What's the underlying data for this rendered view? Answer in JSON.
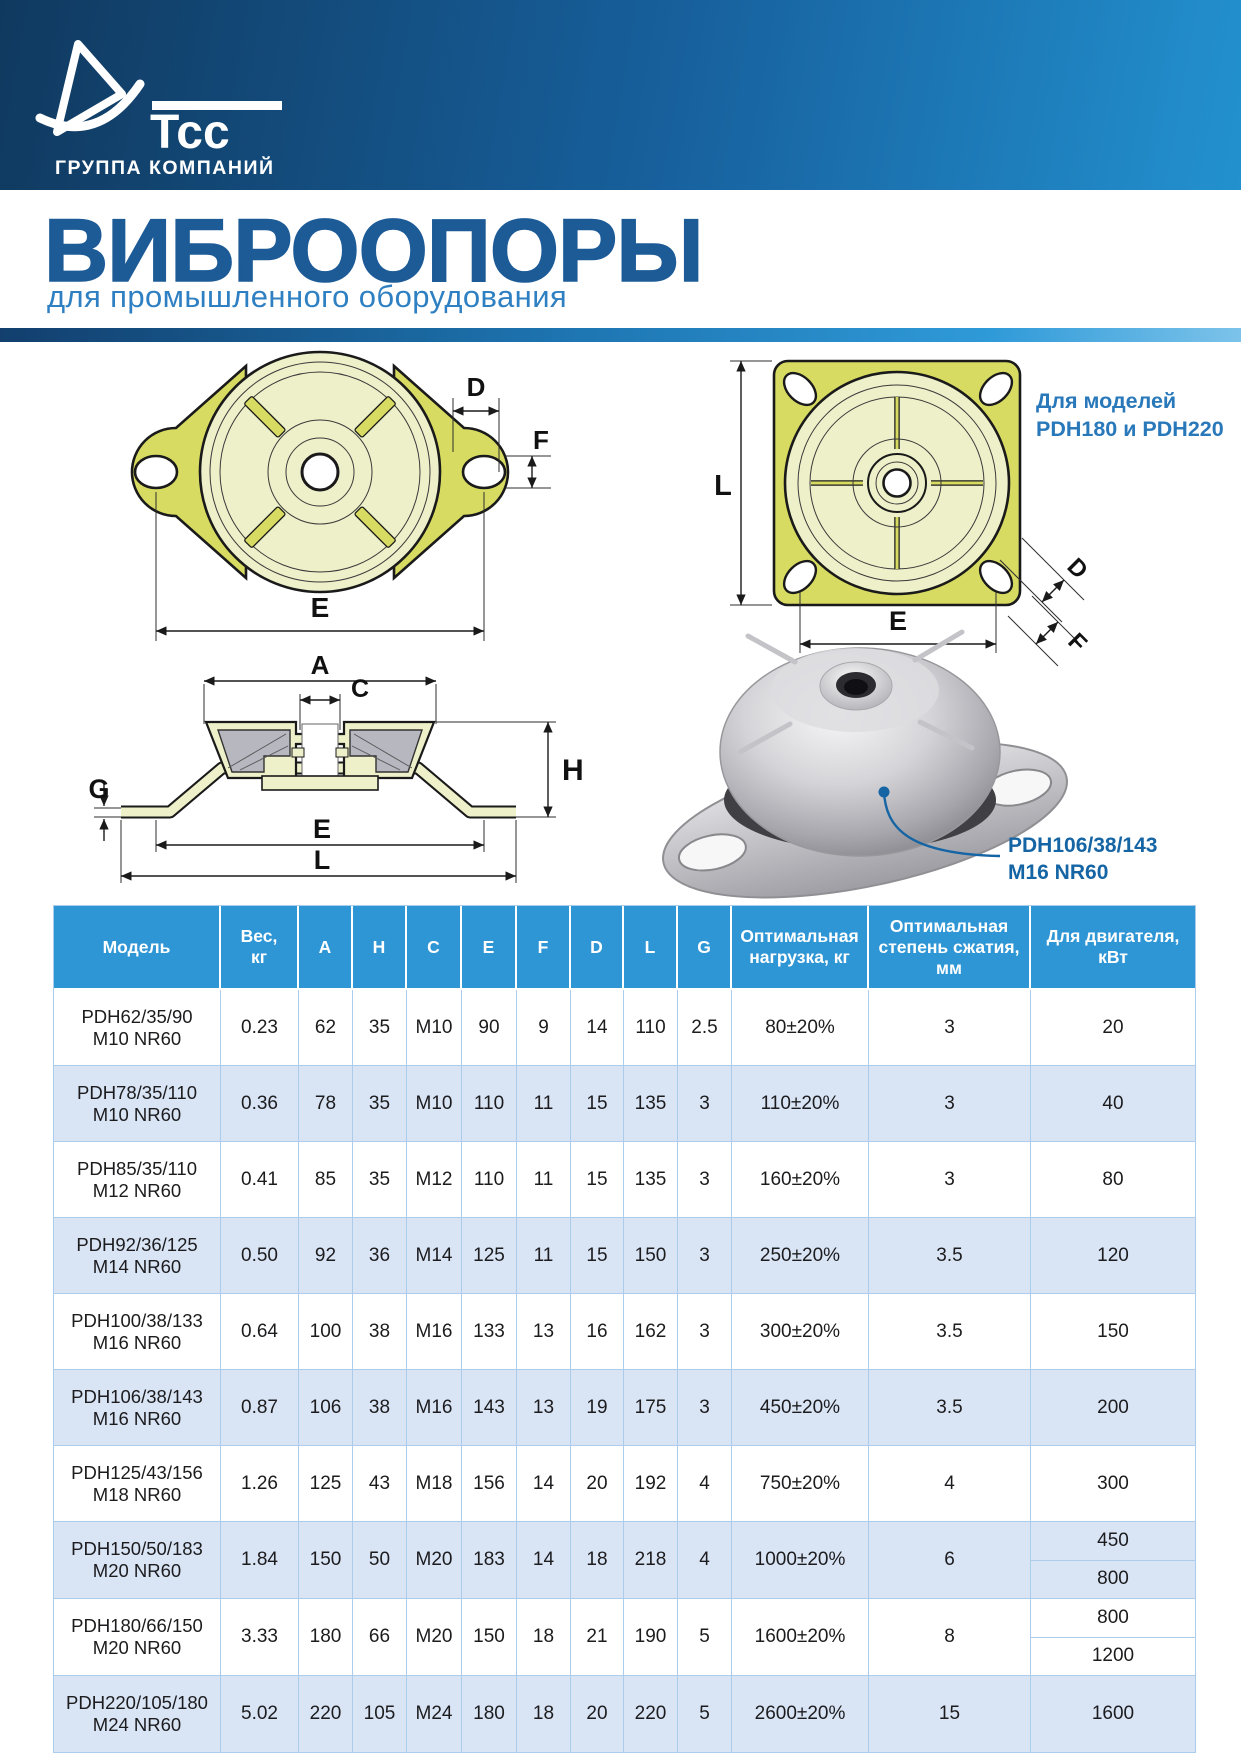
{
  "colors": {
    "header_grad_a": "#10395f",
    "header_grad_b": "#17619e",
    "header_grad_c": "#2391cf",
    "title_blue": "#1d5b97",
    "subtitle_blue": "#2e80c2",
    "bar_a": "#123f6e",
    "bar_b": "#1d74b0",
    "bar_c": "#2f9ad8",
    "bar_d": "#7cc3ea",
    "table_header_bg": "#2f96d5",
    "row_alt": "#d9e4f5",
    "table_border": "#abccea",
    "note_blue": "#2878ba",
    "callout_blue": "#1565a5",
    "plate_yellow": "#d7db62",
    "plate_pale": "#eef0c9",
    "rubber_gray": "#b7b7c0",
    "ink": "#1a1a1a"
  },
  "logo": {
    "brand": "Тсс",
    "tagline": "ГРУППА КОМПАНИЙ"
  },
  "title": {
    "heading": "ВИБРООПОРЫ",
    "subheading": "для промышленного оборудования"
  },
  "drawings": {
    "dims": {
      "A": "A",
      "C": "C",
      "D": "D",
      "E": "E",
      "F": "F",
      "G": "G",
      "H": "H",
      "L": "L"
    },
    "note": {
      "line1": "Для моделей",
      "line2": "PDH180 и PDH220"
    },
    "callout": {
      "line1": "PDH106/38/143",
      "line2": "M16 NR60"
    }
  },
  "table": {
    "headers": [
      "Модель",
      "Вес,\nкг",
      "A",
      "H",
      "C",
      "E",
      "F",
      "D",
      "L",
      "G",
      "Оптимальная нагрузка, кг",
      "Оптимальная степень сжатия, мм",
      "Для двигателя, кВт"
    ],
    "rows": [
      {
        "model": "PDH62/35/90\nM10 NR60",
        "cells": [
          "0.23",
          "62",
          "35",
          "M10",
          "90",
          "9",
          "14",
          "110",
          "2.5",
          "80±20%",
          "3"
        ],
        "motor": "20"
      },
      {
        "model": "PDH78/35/110\nM10 NR60",
        "cells": [
          "0.36",
          "78",
          "35",
          "M10",
          "110",
          "11",
          "15",
          "135",
          "3",
          "110±20%",
          "3"
        ],
        "motor": "40"
      },
      {
        "model": "PDH85/35/110\nM12 NR60",
        "cells": [
          "0.41",
          "85",
          "35",
          "M12",
          "110",
          "11",
          "15",
          "135",
          "3",
          "160±20%",
          "3"
        ],
        "motor": "80"
      },
      {
        "model": "PDH92/36/125\nM14 NR60",
        "cells": [
          "0.50",
          "92",
          "36",
          "M14",
          "125",
          "11",
          "15",
          "150",
          "3",
          "250±20%",
          "3.5"
        ],
        "motor": "120"
      },
      {
        "model": "PDH100/38/133\nM16 NR60",
        "cells": [
          "0.64",
          "100",
          "38",
          "M16",
          "133",
          "13",
          "16",
          "162",
          "3",
          "300±20%",
          "3.5"
        ],
        "motor": "150"
      },
      {
        "model": "PDH106/38/143\nM16 NR60",
        "cells": [
          "0.87",
          "106",
          "38",
          "M16",
          "143",
          "13",
          "19",
          "175",
          "3",
          "450±20%",
          "3.5"
        ],
        "motor": "200"
      },
      {
        "model": "PDH125/43/156\nM18 NR60",
        "cells": [
          "1.26",
          "125",
          "43",
          "M18",
          "156",
          "14",
          "20",
          "192",
          "4",
          "750±20%",
          "4"
        ],
        "motor": "300"
      },
      {
        "model": "PDH150/50/183\nM20 NR60",
        "cells": [
          "1.84",
          "150",
          "50",
          "M20",
          "183",
          "14",
          "18",
          "218",
          "4",
          "1000±20%",
          "6"
        ],
        "motor": [
          "450",
          "800"
        ]
      },
      {
        "model": "PDH180/66/150\nM20 NR60",
        "cells": [
          "3.33",
          "180",
          "66",
          "M20",
          "150",
          "18",
          "21",
          "190",
          "5",
          "1600±20%",
          "8"
        ],
        "motor": [
          "800",
          "1200"
        ]
      },
      {
        "model": "PDH220/105/180\nM24 NR60",
        "cells": [
          "5.02",
          "220",
          "105",
          "M24",
          "180",
          "18",
          "20",
          "220",
          "5",
          "2600±20%",
          "15"
        ],
        "motor": "1600"
      }
    ]
  }
}
